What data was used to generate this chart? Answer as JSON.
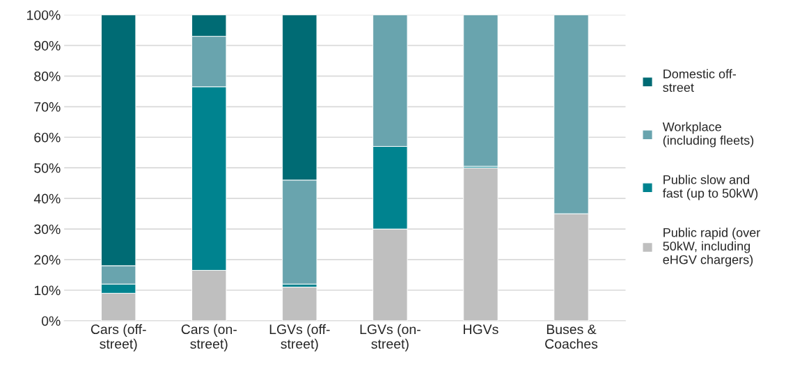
{
  "chart_data": {
    "type": "bar",
    "stacked": true,
    "categories": [
      "Cars (off-\nstreet)",
      "Cars (on-\nstreet)",
      "LGVs (off-\nstreet)",
      "LGVs (on-\nstreet)",
      "HGVs",
      "Buses &\nCoaches"
    ],
    "series": [
      {
        "name": "Public rapid (over\n50kW, including\neHGV chargers)",
        "color": "#bfbfbf",
        "values": [
          9,
          16.5,
          11,
          30,
          50,
          35
        ]
      },
      {
        "name": "Public slow and\nfast (up to 50kW)",
        "color": "#00838f",
        "values": [
          3,
          60,
          1,
          27,
          0.5,
          0
        ]
      },
      {
        "name": "Workplace\n(including fleets)",
        "color": "#69a4ae",
        "values": [
          6,
          16.5,
          34,
          43,
          49.5,
          65
        ]
      },
      {
        "name": "Domestic off-\nstreet",
        "color": "#006b74",
        "values": [
          82,
          7,
          54,
          0,
          0,
          0
        ]
      }
    ],
    "ylim": [
      0,
      100
    ],
    "yticks": [
      {
        "value": 0,
        "label": "0%"
      },
      {
        "value": 10,
        "label": "10%"
      },
      {
        "value": 20,
        "label": "20%"
      },
      {
        "value": 30,
        "label": "30%"
      },
      {
        "value": 40,
        "label": "40%"
      },
      {
        "value": 50,
        "label": "50%"
      },
      {
        "value": 60,
        "label": "60%"
      },
      {
        "value": 70,
        "label": "70%"
      },
      {
        "value": 80,
        "label": "80%"
      },
      {
        "value": 90,
        "label": "90%"
      },
      {
        "value": 100,
        "label": "100%"
      }
    ],
    "grid": "y",
    "legend": "right"
  }
}
